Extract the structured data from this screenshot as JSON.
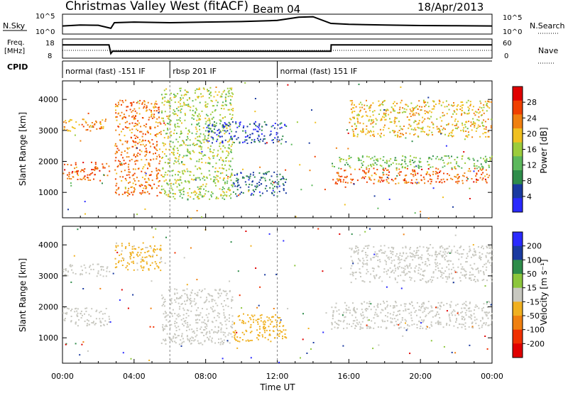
{
  "header": {
    "title": "Christmas Valley West (fitACF)",
    "beam": "Beam 04",
    "date": "18/Apr/2013"
  },
  "colors": {
    "power_scale": [
      "#2a2aff",
      "#1a3aa0",
      "#2e8c4a",
      "#5cb85c",
      "#9ccc3c",
      "#f0c020",
      "#f08010",
      "#f04000",
      "#e00000"
    ],
    "velocity_scale": [
      "#2a2aff",
      "#1a3aa0",
      "#2e8c4a",
      "#8cc63c",
      "#c8c8c0",
      "#f0b020",
      "#f08010",
      "#f03000",
      "#e00000"
    ]
  },
  "chart_data": [
    {
      "id": "nsky_nsearch",
      "type": "line",
      "left_label": "N.Sky",
      "right_label": "N.Search",
      "left_ticks": [
        "10^5",
        "10^0"
      ],
      "right_ticks": [
        "10^5",
        "10^0"
      ],
      "x": [
        0,
        1,
        2,
        2.7,
        2.9,
        4,
        6,
        8,
        10,
        12,
        13.2,
        14,
        15,
        16,
        18,
        20,
        22,
        24
      ],
      "series": [
        {
          "values": [
            3.2,
            3.6,
            3.5,
            2.2,
            4.6,
            4.9,
            4.6,
            4.9,
            5.1,
            5.6,
            7.0,
            7.2,
            4.3,
            3.9,
            3.6,
            3.4,
            3.3,
            3.2
          ]
        }
      ],
      "ylim": [
        0,
        8
      ]
    },
    {
      "id": "freq_nave",
      "type": "line",
      "left_label_lines": [
        "Freq.",
        "[MHz]"
      ],
      "right_label": "Nave",
      "left_ticks": [
        "18",
        "8"
      ],
      "right_ticks": [
        "60",
        "0"
      ],
      "x": [
        0,
        2.6,
        2.7,
        2.8,
        15,
        15.01,
        24
      ],
      "series": [
        {
          "values": [
            15.1,
            15.1,
            10.2,
            11.5,
            11.5,
            15.1,
            15.1
          ]
        },
        {
          "values": [
            12.0,
            12.0,
            12.0,
            12.0,
            12.0,
            12.0,
            12.0
          ]
        }
      ],
      "ylim": [
        8,
        18
      ]
    },
    {
      "id": "cpid",
      "type": "table",
      "label": "CPID",
      "segments": [
        {
          "start": 0,
          "end": 6,
          "label": "normal (fast) -151 IF"
        },
        {
          "start": 6,
          "end": 12,
          "label": "rbsp 201 IF"
        },
        {
          "start": 12,
          "end": 24,
          "label": "normal (fast) 151 IF"
        }
      ]
    },
    {
      "id": "power",
      "type": "scatter",
      "ylabel": "Slant Range [km]",
      "yticks": [
        1000,
        2000,
        3000,
        4000
      ],
      "ylim": [
        180,
        4600
      ],
      "xlim": [
        0,
        24
      ],
      "colorbar": {
        "label": "Power [dB]",
        "ticks": [
          "28",
          "24",
          "20",
          "16",
          "12",
          "8",
          "4"
        ],
        "range": [
          0,
          32
        ]
      },
      "bands": [
        {
          "x": [
            0,
            2.6
          ],
          "y": [
            1400,
            2000
          ],
          "value": 25
        },
        {
          "x": [
            0,
            2.6
          ],
          "y": [
            3000,
            3400
          ],
          "value": 22
        },
        {
          "x": [
            2.9,
            5.5
          ],
          "y": [
            900,
            4000
          ],
          "value": 24
        },
        {
          "x": [
            5.5,
            9.5
          ],
          "y": [
            800,
            4400
          ],
          "value": 16
        },
        {
          "x": [
            8,
            12.5
          ],
          "y": [
            2600,
            3300
          ],
          "value": 5
        },
        {
          "x": [
            9.5,
            12.5
          ],
          "y": [
            900,
            1700
          ],
          "value": 7
        },
        {
          "x": [
            15,
            24
          ],
          "y": [
            1300,
            1800
          ],
          "value": 25
        },
        {
          "x": [
            15,
            24
          ],
          "y": [
            1800,
            2200
          ],
          "value": 14
        },
        {
          "x": [
            16,
            24
          ],
          "y": [
            2800,
            4000
          ],
          "value": 20
        }
      ]
    },
    {
      "id": "velocity",
      "type": "scatter",
      "ylabel": "Slant Range [km]",
      "xlabel": "Time UT",
      "xticks": [
        "00:00",
        "04:00",
        "08:00",
        "12:00",
        "16:00",
        "20:00",
        "00:00"
      ],
      "yticks": [
        1000,
        2000,
        3000,
        4000
      ],
      "ylim": [
        180,
        4600
      ],
      "xlim": [
        0,
        24
      ],
      "colorbar": {
        "label": "Velocity [m s⁻¹]",
        "ticks": [
          "200",
          "100",
          "50",
          "15",
          "-15",
          "-50",
          "-100",
          "-200"
        ],
        "range": [
          -250,
          250
        ]
      },
      "bands": [
        {
          "x": [
            0,
            2.6
          ],
          "y": [
            1400,
            2000
          ],
          "value": 0
        },
        {
          "x": [
            0,
            2.6
          ],
          "y": [
            3000,
            3400
          ],
          "value": 0
        },
        {
          "x": [
            2.9,
            5.5
          ],
          "y": [
            3200,
            4100
          ],
          "value": -40
        },
        {
          "x": [
            5.5,
            9.5
          ],
          "y": [
            800,
            2600
          ],
          "value": 0
        },
        {
          "x": [
            9.5,
            12.5
          ],
          "y": [
            900,
            1800
          ],
          "value": -60
        },
        {
          "x": [
            15,
            24
          ],
          "y": [
            1300,
            2200
          ],
          "value": 0
        },
        {
          "x": [
            16,
            24
          ],
          "y": [
            2800,
            4000
          ],
          "value": 0
        }
      ]
    }
  ]
}
